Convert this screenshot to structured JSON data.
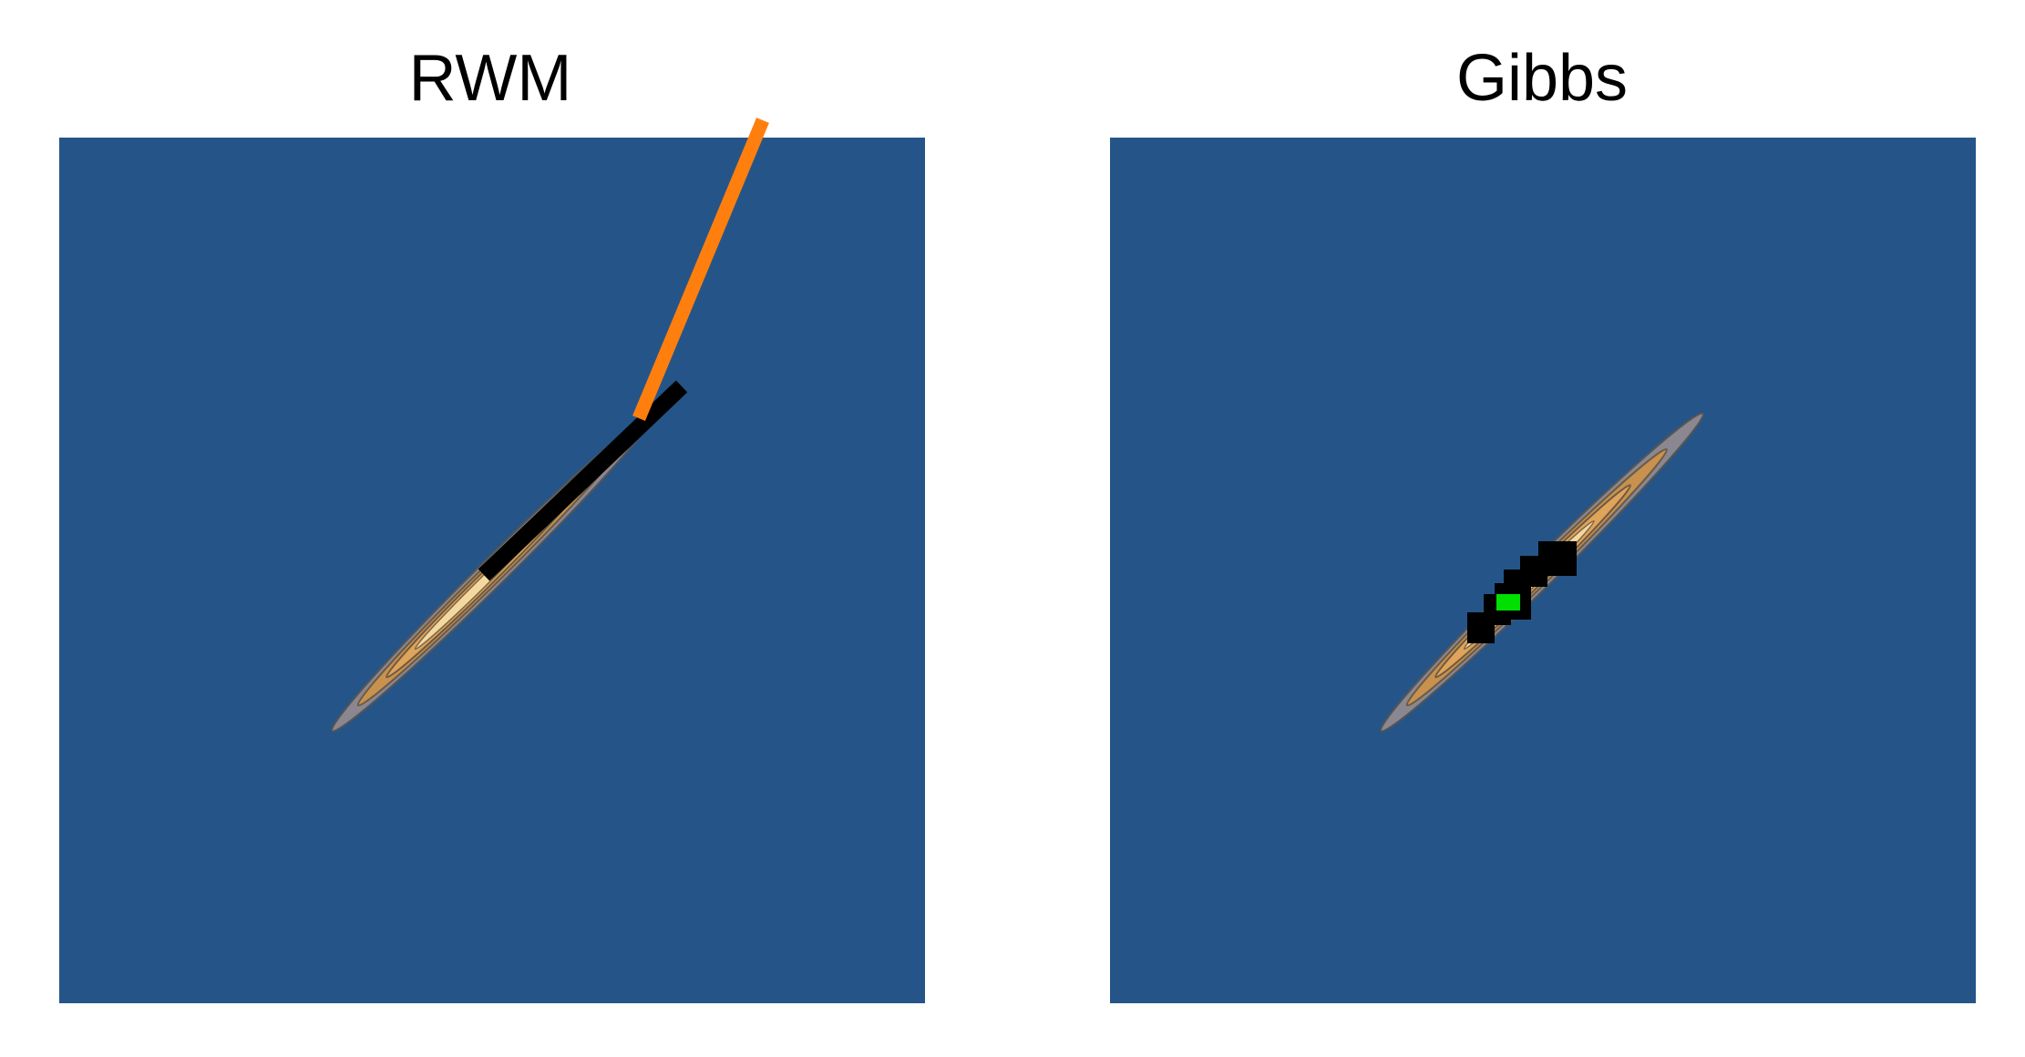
{
  "panels": [
    {
      "title": "RWM"
    },
    {
      "title": "Gibbs"
    }
  ]
}
